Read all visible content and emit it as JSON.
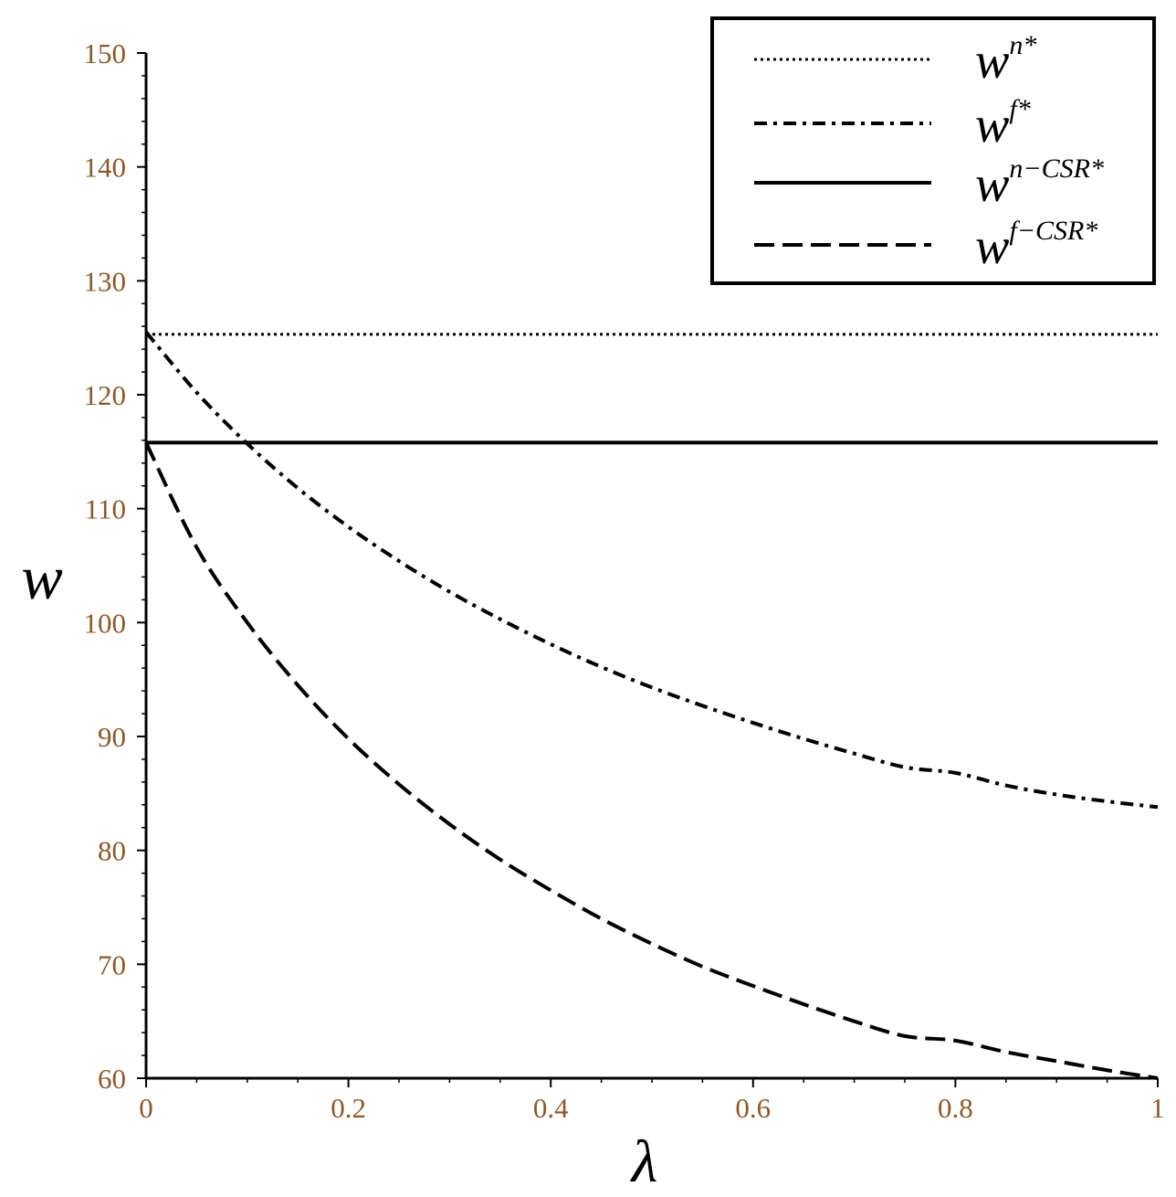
{
  "chart_data": {
    "type": "line",
    "title": "",
    "xlabel": "λ",
    "ylabel": "w",
    "xlim": [
      0,
      1
    ],
    "ylim": [
      60,
      150
    ],
    "grid": false,
    "legend_position": "top-right",
    "x_ticks": [
      "0",
      "0.2",
      "0.4",
      "0.6",
      "0.8",
      "1"
    ],
    "y_ticks": [
      "60",
      "70",
      "80",
      "90",
      "100",
      "110",
      "120",
      "130",
      "140",
      "150"
    ],
    "x": [
      0,
      0.05,
      0.1,
      0.15,
      0.2,
      0.25,
      0.3,
      0.35,
      0.4,
      0.45,
      0.5,
      0.55,
      0.6,
      0.65,
      0.7,
      0.75,
      0.8,
      0.85,
      0.9,
      0.95,
      1
    ],
    "series": [
      {
        "name": "w^{n*}",
        "legend_base": "w",
        "legend_sup": "n*",
        "style": "dotted",
        "values": [
          125.3,
          125.3,
          125.3,
          125.3,
          125.3,
          125.3,
          125.3,
          125.3,
          125.3,
          125.3,
          125.3,
          125.3,
          125.3,
          125.3,
          125.3,
          125.3,
          125.3,
          125.3,
          125.3,
          125.3,
          125.3
        ]
      },
      {
        "name": "w^{f*}",
        "legend_base": "w",
        "legend_sup": "f*",
        "style": "dashdot",
        "values": [
          125.5,
          120.2,
          115.7,
          111.8,
          108.4,
          105.4,
          102.7,
          100.3,
          98.1,
          96.1,
          94.3,
          92.7,
          91.2,
          89.8,
          88.5,
          87.3,
          86.8,
          85.7,
          84.9,
          84.3,
          83.8
        ]
      },
      {
        "name": "w^{n−CSR*}",
        "legend_base": "w",
        "legend_sup": "n−CSR*",
        "style": "solid",
        "values": [
          115.8,
          115.8,
          115.8,
          115.8,
          115.8,
          115.8,
          115.8,
          115.8,
          115.8,
          115.8,
          115.8,
          115.8,
          115.8,
          115.8,
          115.8,
          115.8,
          115.8,
          115.8,
          115.8,
          115.8,
          115.8
        ]
      },
      {
        "name": "w^{f−CSR*}",
        "legend_base": "w",
        "legend_sup": "f−CSR*",
        "style": "dashed",
        "values": [
          115.8,
          106.6,
          100.0,
          94.5,
          89.8,
          85.8,
          82.3,
          79.2,
          76.5,
          74.0,
          71.8,
          69.8,
          68.1,
          66.5,
          65.0,
          63.7,
          63.3,
          62.3,
          61.5,
          60.7,
          60.0
        ]
      }
    ]
  }
}
